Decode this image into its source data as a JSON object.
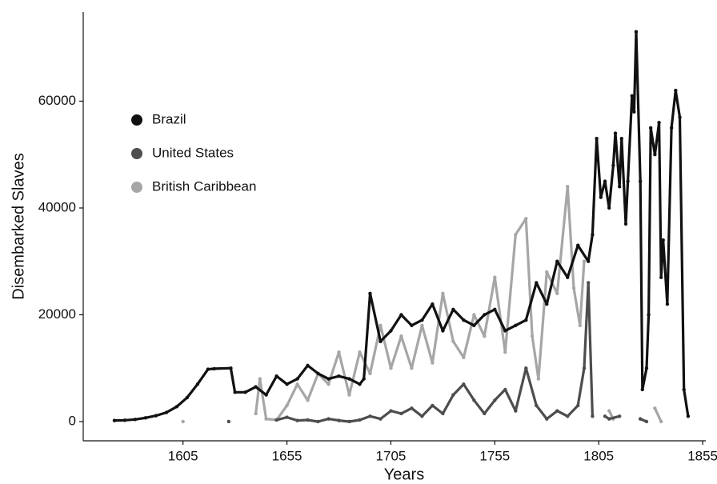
{
  "chart_data": {
    "type": "line",
    "x_label": "Years",
    "y_label": "Disembarked Slaves",
    "xlim": [
      1557,
      1856.5
    ],
    "xticks": [
      1605,
      1655,
      1705,
      1755,
      1805,
      1855
    ],
    "ylim": [
      -3600,
      76700
    ],
    "yticks": [
      0,
      20000,
      40000,
      60000
    ],
    "legend": "upper left",
    "grid": false,
    "series": [
      {
        "name": "Brazil",
        "color": "#111111",
        "x": [
          1572,
          1577,
          1582,
          1587,
          1592,
          1597,
          1602,
          1607,
          1612,
          1617,
          1620,
          1628,
          1630,
          1635,
          1640,
          1645,
          1650,
          1655,
          1660,
          1665,
          1670,
          1675,
          1680,
          1685,
          1690,
          1692,
          1695,
          1700,
          1705,
          1710,
          1715,
          1720,
          1725,
          1730,
          1735,
          1740,
          1745,
          1750,
          1755,
          1760,
          1765,
          1770,
          1775,
          1780,
          1785,
          1790,
          1795,
          1800,
          1802,
          1804,
          1806,
          1808,
          1810,
          1812,
          1813,
          1815,
          1816,
          1818,
          1819,
          1821,
          1822,
          1823,
          1825,
          1826,
          1828,
          1829,
          1830,
          1832,
          1834,
          1835,
          1836,
          1838,
          1840,
          1842,
          1844,
          1846,
          1848
        ],
        "values": [
          200,
          250,
          400,
          700,
          1100,
          1700,
          2800,
          4500,
          7000,
          9800,
          9900,
          10000,
          5500,
          5500,
          6500,
          5000,
          8500,
          7000,
          8000,
          10500,
          9000,
          8000,
          8500,
          8000,
          7000,
          8000,
          24000,
          15000,
          17000,
          20000,
          18000,
          19000,
          22000,
          17000,
          21000,
          19000,
          18000,
          20000,
          21000,
          17000,
          18000,
          19000,
          26000,
          22000,
          30000,
          27000,
          33000,
          30000,
          35000,
          53000,
          42000,
          45000,
          40000,
          48000,
          54000,
          44000,
          53000,
          37000,
          45000,
          61000,
          58000,
          73000,
          45000,
          6000,
          10000,
          20000,
          55000,
          50000,
          56000,
          27000,
          34000,
          22000,
          55000,
          62000,
          57000,
          6000,
          1000
        ]
      },
      {
        "name": "United States",
        "color": "#4d4d4d",
        "x": [
          1627,
          1632,
          1650,
          1655,
          1660,
          1665,
          1670,
          1675,
          1680,
          1685,
          1690,
          1695,
          1700,
          1705,
          1710,
          1715,
          1720,
          1725,
          1730,
          1735,
          1740,
          1745,
          1750,
          1755,
          1760,
          1765,
          1770,
          1775,
          1780,
          1785,
          1790,
          1795,
          1798,
          1800,
          1802,
          1805,
          1808,
          1810,
          1815,
          1820,
          1825,
          1828
        ],
        "values": [
          0,
          null,
          300,
          800,
          200,
          300,
          0,
          500,
          200,
          0,
          300,
          1000,
          500,
          2000,
          1500,
          2500,
          1000,
          3000,
          1500,
          5000,
          7000,
          4000,
          1500,
          4000,
          6000,
          2000,
          10000,
          3000,
          500,
          2000,
          1000,
          3000,
          10000,
          26000,
          1000,
          null,
          1000,
          500,
          1000,
          null,
          500,
          0
        ]
      },
      {
        "name": "British Caribbean",
        "color": "#a6a6a6",
        "x": [
          1605,
          1606,
          1640,
          1642,
          1645,
          1650,
          1655,
          1660,
          1665,
          1670,
          1675,
          1680,
          1685,
          1690,
          1695,
          1700,
          1705,
          1710,
          1715,
          1720,
          1725,
          1730,
          1735,
          1740,
          1745,
          1750,
          1755,
          1760,
          1765,
          1770,
          1773,
          1776,
          1780,
          1785,
          1790,
          1793,
          1796,
          1798,
          1800,
          1810,
          1812,
          1815,
          1832,
          1835
        ],
        "values": [
          0,
          null,
          1500,
          8000,
          500,
          300,
          3000,
          7000,
          4000,
          9000,
          7000,
          13000,
          5000,
          13000,
          9000,
          18000,
          10000,
          16000,
          10000,
          18000,
          11000,
          24000,
          15000,
          12000,
          20000,
          16000,
          27000,
          13000,
          35000,
          38000,
          16000,
          8000,
          28000,
          24000,
          44000,
          25000,
          18000,
          30000,
          null,
          2000,
          500,
          null,
          2500,
          0
        ]
      }
    ]
  }
}
